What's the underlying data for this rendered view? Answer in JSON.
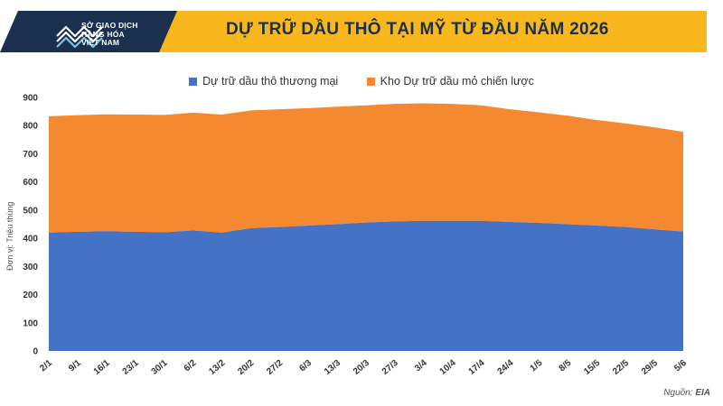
{
  "header": {
    "logo_lines": [
      "SỞ GIAO DỊCH",
      "HÀNG HÓA",
      "VIỆT NAM"
    ],
    "title": "DỰ TRỮ DẦU THÔ TẠI MỸ TỪ ĐẦU NĂM 2026",
    "band_color": "#f7b71d",
    "navy_color": "#1b2f4f"
  },
  "footer": {
    "source_label": "Nguồn:",
    "source_value": "EIA"
  },
  "chart_data": {
    "type": "area",
    "stacked": true,
    "ylabel": "Đơn vị: Triệu thùng",
    "ylim": [
      0,
      900
    ],
    "yticks": [
      "0",
      "100",
      "200",
      "300",
      "400",
      "500",
      "600",
      "700",
      "800",
      "900"
    ],
    "grid": false,
    "legend_position": "top",
    "categories": [
      "2/1",
      "9/1",
      "16/1",
      "23/1",
      "30/1",
      "6/2",
      "13/2",
      "20/2",
      "27/2",
      "6/3",
      "13/3",
      "20/3",
      "27/3",
      "3/4",
      "10/4",
      "17/4",
      "24/4",
      "1/5",
      "8/5",
      "15/5",
      "22/5",
      "29/5",
      "5/6"
    ],
    "series": [
      {
        "name": "Dự trữ dầu thô thương mại",
        "color": "#4472c4",
        "values": [
          420,
          423,
          425,
          423,
          421,
          428,
          420,
          436,
          440,
          445,
          450,
          456,
          460,
          462,
          462,
          462,
          458,
          455,
          450,
          445,
          440,
          432,
          424
        ]
      },
      {
        "name": "Kho Dự trữ dầu mỏ chiến lược",
        "color": "#f4892f",
        "values": [
          413,
          414,
          415,
          416,
          417,
          418,
          419,
          418,
          418,
          417,
          417,
          416,
          417,
          417,
          415,
          410,
          400,
          392,
          385,
          375,
          368,
          362,
          354
        ]
      }
    ]
  }
}
